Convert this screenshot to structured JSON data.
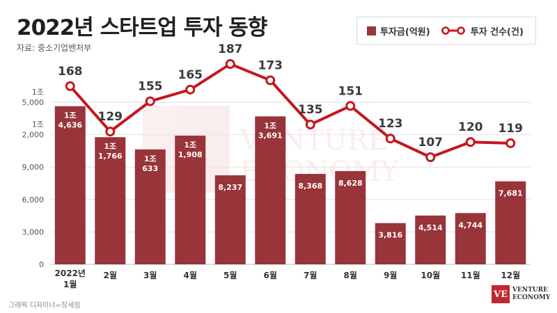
{
  "title": "2022년 스타트업 투자 동향",
  "source": "자료: 중소기업벤처부",
  "credit": "그래픽 디자이너=장세림",
  "logo": {
    "mark": "VE",
    "line1": "VENTURE",
    "line2": "ECONOMY"
  },
  "watermark": {
    "line1": "VENTURE",
    "line2": "ECONOMY"
  },
  "legend": {
    "bar_label": "투자금(억원)",
    "line_label": "투자 건수(건)"
  },
  "colors": {
    "bar": "#98343a",
    "line": "#c4171d",
    "grid": "#e2e2e2",
    "text": "#333333"
  },
  "chart_data": {
    "type": "bar",
    "categories": [
      [
        "2022년",
        "1월"
      ],
      [
        "2월"
      ],
      [
        "3월"
      ],
      [
        "4월"
      ],
      [
        "5월"
      ],
      [
        "6월"
      ],
      [
        "7월"
      ],
      [
        "8월"
      ],
      [
        "9월"
      ],
      [
        "10월"
      ],
      [
        "11월"
      ],
      [
        "12월"
      ]
    ],
    "y_ticks": [
      {
        "value": 0,
        "label": [
          "0"
        ]
      },
      {
        "value": 3000,
        "label": [
          "3,000"
        ]
      },
      {
        "value": 6000,
        "label": [
          "6,000"
        ]
      },
      {
        "value": 9000,
        "label": [
          "9,000"
        ]
      },
      {
        "value": 12000,
        "label": [
          "1조",
          "2,000"
        ]
      },
      {
        "value": 15000,
        "label": [
          "1조",
          "5,000"
        ]
      }
    ],
    "ylim": [
      0,
      15000
    ],
    "grid": true,
    "series": [
      {
        "name": "투자금(억원)",
        "type": "bar",
        "values": [
          14636,
          11766,
          10633,
          11908,
          8237,
          13691,
          8368,
          8628,
          3816,
          4514,
          4744,
          7681
        ],
        "labels": [
          [
            "1조",
            "4,636"
          ],
          [
            "1조",
            "1,766"
          ],
          [
            "1조",
            "633"
          ],
          [
            "1조",
            "1,908"
          ],
          [
            "8,237"
          ],
          [
            "1조",
            "3,691"
          ],
          [
            "8,368"
          ],
          [
            "8,628"
          ],
          [
            "3,816"
          ],
          [
            "4,514"
          ],
          [
            "4,744"
          ],
          [
            "7,681"
          ]
        ]
      },
      {
        "name": "투자 건수(건)",
        "type": "line",
        "values": [
          168,
          129,
          155,
          165,
          187,
          173,
          135,
          151,
          123,
          107,
          120,
          119
        ],
        "labels": [
          "168",
          "129",
          "155",
          "165",
          "187",
          "173",
          "135",
          "151",
          "123",
          "107",
          "120",
          "119"
        ]
      }
    ]
  }
}
